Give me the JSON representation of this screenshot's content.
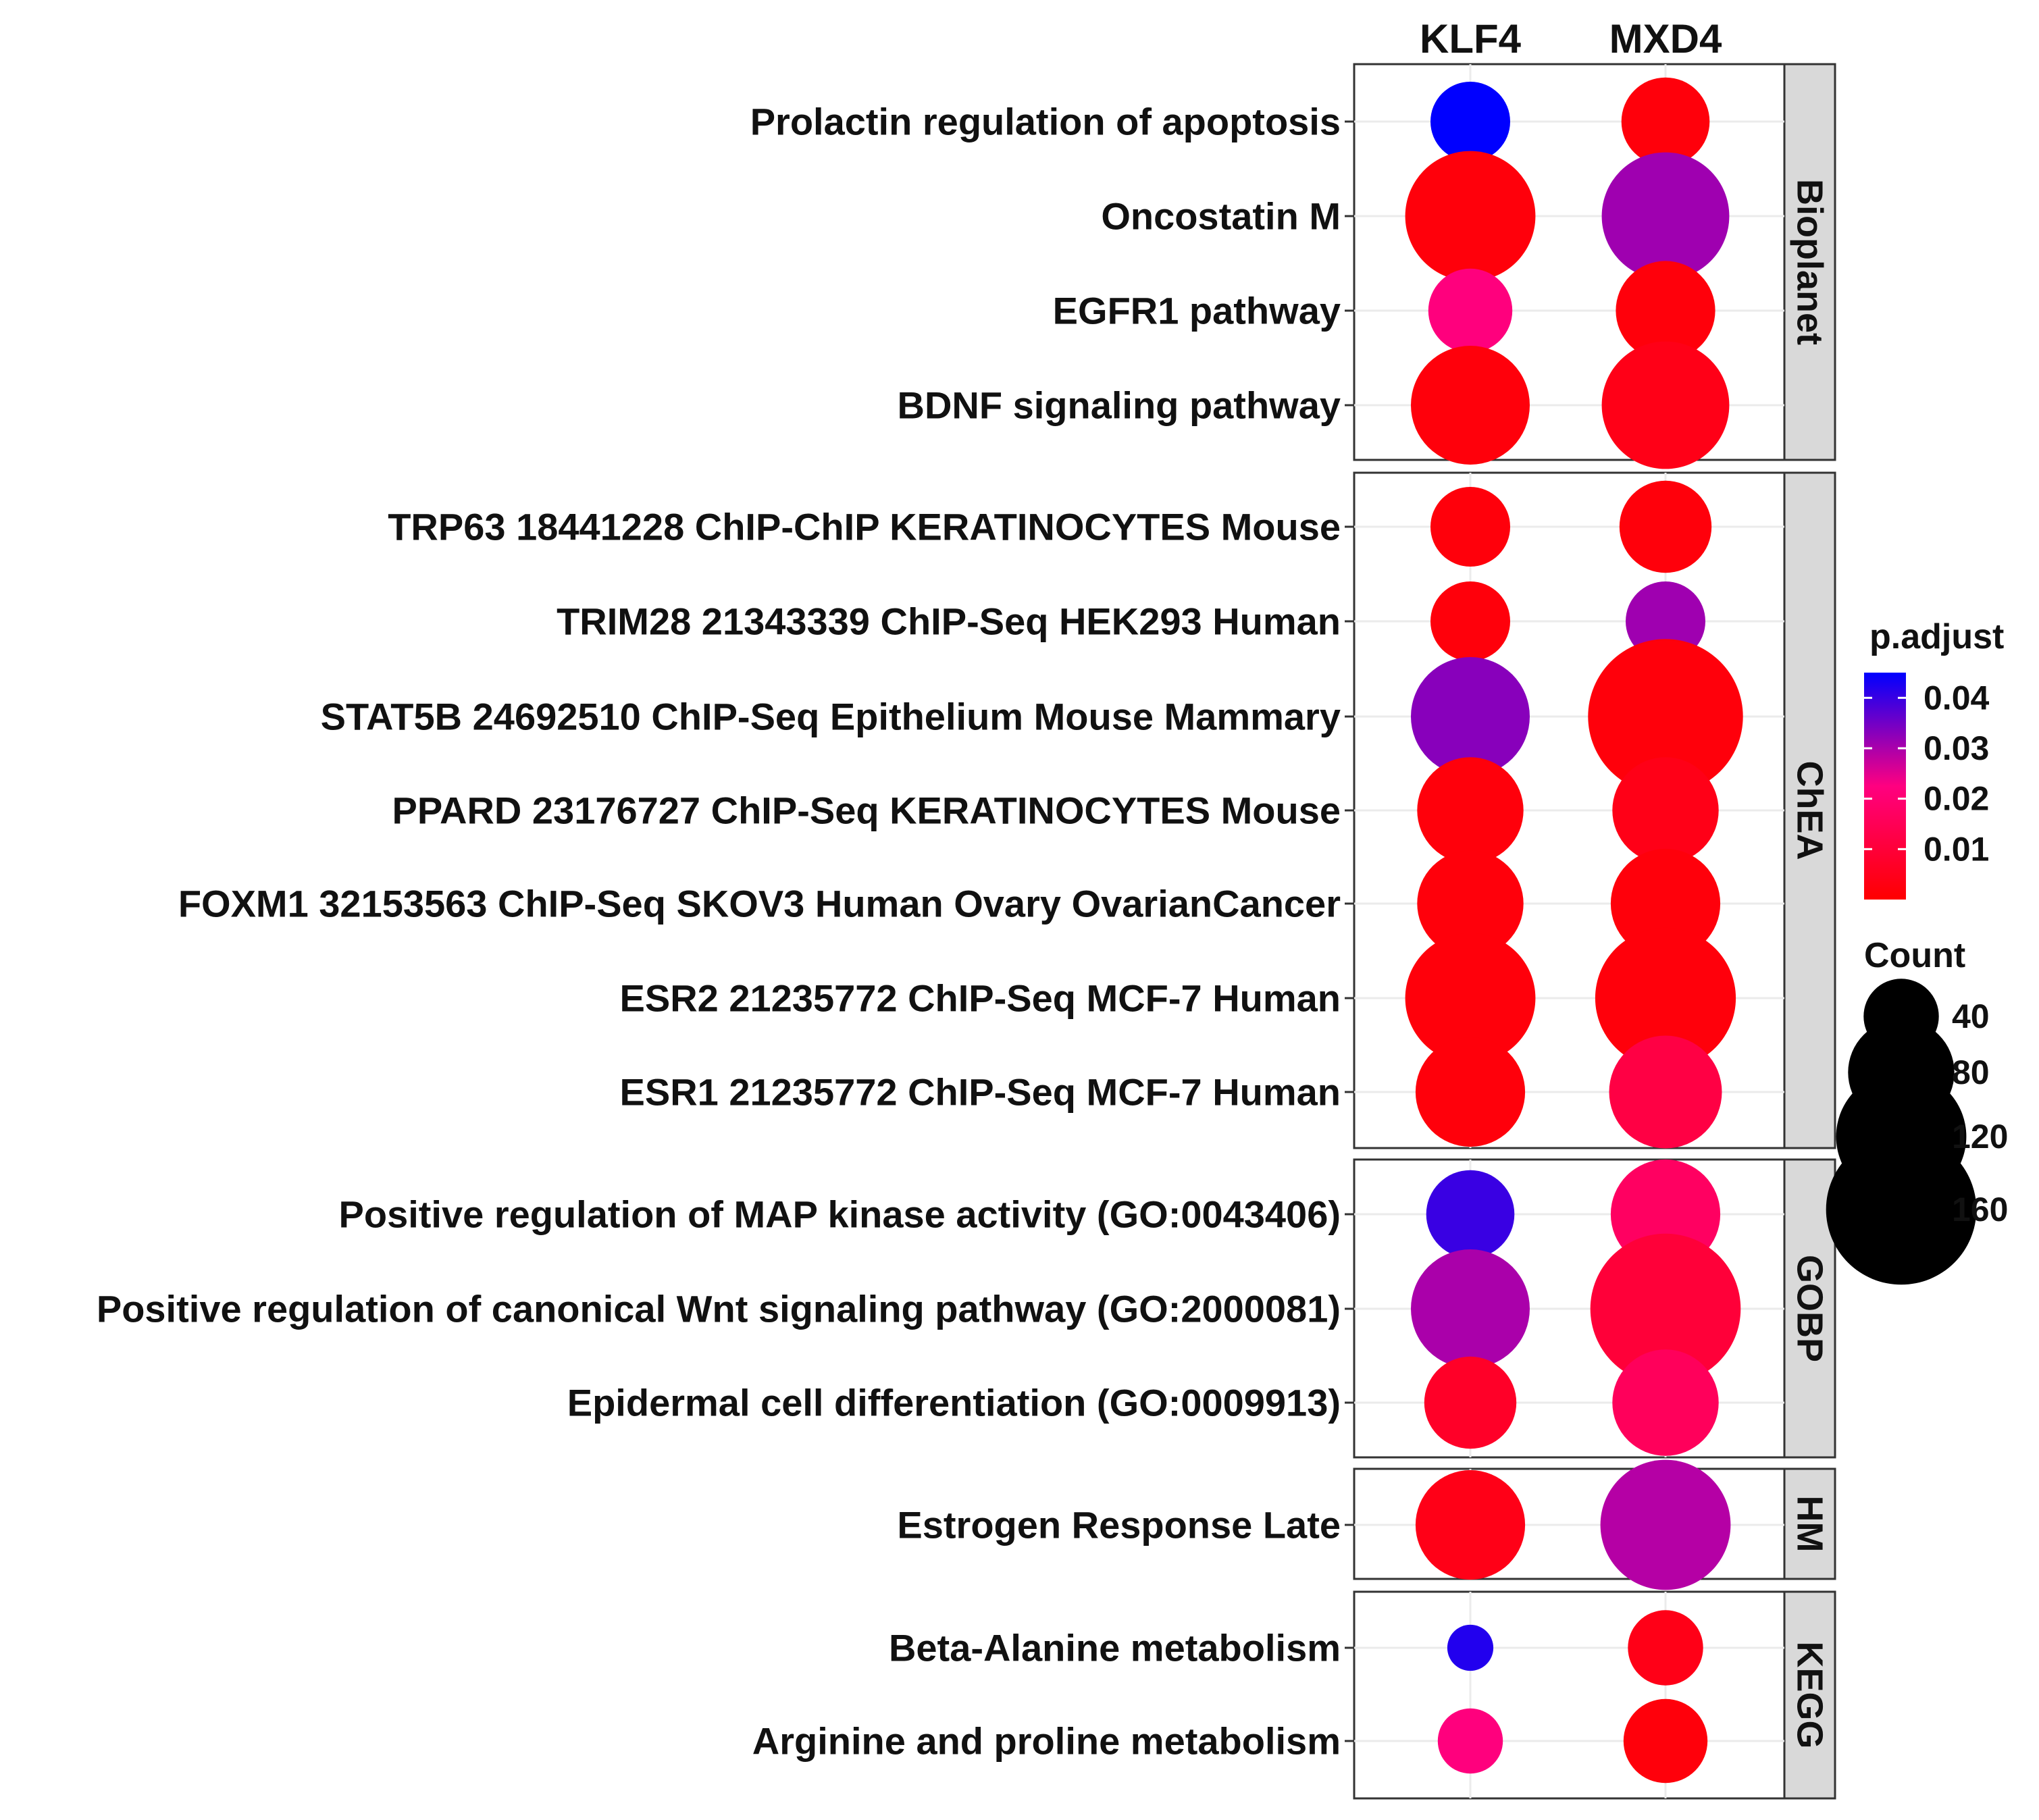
{
  "chart_data": {
    "type": "dotplot",
    "columns": [
      "KLF4",
      "MXD4"
    ],
    "facets": [
      {
        "name": "Bioplanet",
        "rows": [
          {
            "label": "Prolactin regulation of apoptosis",
            "points": [
              {
                "count": 45,
                "p_adjust": 0.045
              },
              {
                "count": 55,
                "p_adjust": 0.002
              }
            ]
          },
          {
            "label": "Oncostatin M",
            "points": [
              {
                "count": 120,
                "p_adjust": 0.002
              },
              {
                "count": 115,
                "p_adjust": 0.031
              }
            ]
          },
          {
            "label": "EGFR1 pathway",
            "points": [
              {
                "count": 50,
                "p_adjust": 0.022
              },
              {
                "count": 70,
                "p_adjust": 0.002
              }
            ]
          },
          {
            "label": "BDNF signaling pathway",
            "points": [
              {
                "count": 100,
                "p_adjust": 0.002
              },
              {
                "count": 115,
                "p_adjust": 0.004
              }
            ]
          }
        ]
      },
      {
        "name": "ChEA",
        "rows": [
          {
            "label": "TRP63 18441228 ChIP-ChIP KERATINOCYTES Mouse",
            "points": [
              {
                "count": 45,
                "p_adjust": 0.002
              },
              {
                "count": 60,
                "p_adjust": 0.002
              }
            ]
          },
          {
            "label": "TRIM28 21343339 ChIP-Seq HEK293 Human",
            "points": [
              {
                "count": 45,
                "p_adjust": 0.002
              },
              {
                "count": 45,
                "p_adjust": 0.031
              }
            ]
          },
          {
            "label": "STAT5B 24692510 ChIP-Seq Epithelium Mouse Mammary",
            "points": [
              {
                "count": 100,
                "p_adjust": 0.033
              },
              {
                "count": 170,
                "p_adjust": 0.002
              }
            ]
          },
          {
            "label": "PPARD 23176727 ChIP-Seq KERATINOCYTES Mouse",
            "points": [
              {
                "count": 80,
                "p_adjust": 0.002
              },
              {
                "count": 80,
                "p_adjust": 0.004
              }
            ]
          },
          {
            "label": "FOXM1 32153563 ChIP-Seq SKOV3 Human Ovary OvarianCancer",
            "points": [
              {
                "count": 80,
                "p_adjust": 0.002
              },
              {
                "count": 85,
                "p_adjust": 0.002
              }
            ]
          },
          {
            "label": "ESR2 21235772 ChIP-Seq MCF-7 Human",
            "points": [
              {
                "count": 120,
                "p_adjust": 0.002
              },
              {
                "count": 140,
                "p_adjust": 0.002
              }
            ]
          },
          {
            "label": "ESR1 21235772 ChIP-Seq MCF-7 Human",
            "points": [
              {
                "count": 85,
                "p_adjust": 0.002
              },
              {
                "count": 90,
                "p_adjust": 0.012
              }
            ]
          }
        ]
      },
      {
        "name": "GOBP",
        "rows": [
          {
            "label": "Positive regulation of MAP kinase activity (GO:0043406)",
            "points": [
              {
                "count": 55,
                "p_adjust": 0.04
              },
              {
                "count": 85,
                "p_adjust": 0.017
              }
            ]
          },
          {
            "label": "Positive regulation of canonical Wnt signaling pathway (GO:2000081)",
            "points": [
              {
                "count": 100,
                "p_adjust": 0.03
              },
              {
                "count": 160,
                "p_adjust": 0.01
              }
            ]
          },
          {
            "label": "Epidermal cell differentiation (GO:0009913)",
            "points": [
              {
                "count": 60,
                "p_adjust": 0.007
              },
              {
                "count": 80,
                "p_adjust": 0.016
              }
            ]
          }
        ]
      },
      {
        "name": "HM",
        "rows": [
          {
            "label": "Estrogen Response Late",
            "points": [
              {
                "count": 85,
                "p_adjust": 0.004
              },
              {
                "count": 120,
                "p_adjust": 0.029
              }
            ]
          }
        ]
      },
      {
        "name": "KEGG",
        "rows": [
          {
            "label": "Beta-Alanine metabolism",
            "points": [
              {
                "count": 15,
                "p_adjust": 0.042
              },
              {
                "count": 40,
                "p_adjust": 0.004
              }
            ]
          },
          {
            "label": "Arginine and proline metabolism",
            "points": [
              {
                "count": 30,
                "p_adjust": 0.022
              },
              {
                "count": 50,
                "p_adjust": 0.002
              }
            ]
          }
        ]
      }
    ],
    "color_legend": {
      "title": "p.adjust",
      "min": 0.0,
      "max": 0.045,
      "ticks": [
        0.04,
        0.03,
        0.02,
        0.01
      ],
      "tick_labels": [
        "0.04",
        "0.03",
        "0.02",
        "0.01"
      ],
      "low_color": "#ff0000",
      "high_color": "#0000ff"
    },
    "size_legend": {
      "title": "Count",
      "values": [
        40,
        80,
        120,
        160
      ],
      "labels": [
        "40",
        "80",
        "120",
        "160"
      ]
    }
  }
}
